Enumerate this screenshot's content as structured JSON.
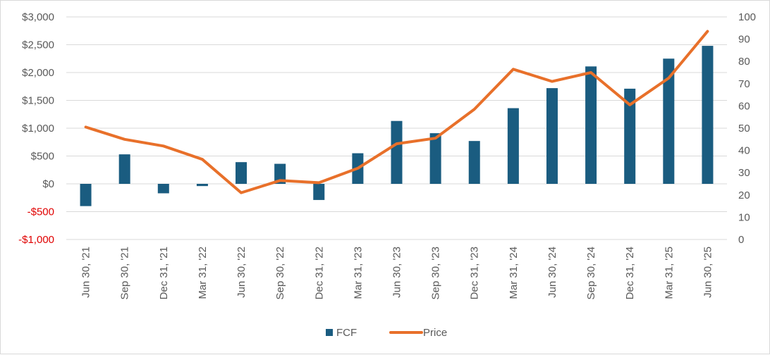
{
  "chart_data": {
    "type": "bar+line",
    "title": "",
    "categories": [
      "Jun 30, '21",
      "Sep 30, '21",
      "Dec 31, '21",
      "Mar 31, '22",
      "Jun 30, '22",
      "Sep 30, '22",
      "Dec 31, '22",
      "Mar 31, '23",
      "Jun 30, '23",
      "Sep 30, '23",
      "Dec 31, '23",
      "Mar 31, '24",
      "Jun 30, '24",
      "Sep 30, '24",
      "Dec 31, '24",
      "Mar 31, '25",
      "Jun 30, '25"
    ],
    "series": [
      {
        "name": "FCF",
        "type": "bar",
        "axis": "left",
        "color": "#1a5c80",
        "values": [
          -400,
          530,
          -170,
          -40,
          390,
          360,
          -290,
          550,
          1130,
          910,
          770,
          1360,
          1720,
          2110,
          1710,
          2250,
          2480
        ]
      },
      {
        "name": "Price",
        "type": "line",
        "axis": "right",
        "color": "#e8702a",
        "values": [
          50.5,
          45,
          42,
          36,
          21,
          26.5,
          25.5,
          32,
          43,
          45.5,
          58.5,
          76.5,
          71,
          75,
          60.5,
          72.5,
          93.5
        ]
      }
    ],
    "y_left": {
      "range": [
        -1000,
        3000
      ],
      "ticks": [
        3000,
        2500,
        2000,
        1500,
        1000,
        500,
        0,
        -500,
        -1000
      ],
      "tick_labels": [
        "$3,000",
        "$2,500",
        "$2,000",
        "$1,500",
        "$1,000",
        "$500",
        "$0",
        "-$500",
        "-$1,000"
      ],
      "negative_color": "#e00000"
    },
    "y_right": {
      "range": [
        0,
        100
      ],
      "ticks": [
        100,
        90,
        80,
        70,
        60,
        50,
        40,
        30,
        20,
        10,
        0
      ],
      "tick_labels": [
        "100",
        "90",
        "80",
        "70",
        "60",
        "50",
        "40",
        "30",
        "20",
        "10",
        "0"
      ]
    },
    "grid": true,
    "legend": {
      "position": "bottom-center",
      "entries": [
        "FCF",
        "Price"
      ]
    }
  }
}
